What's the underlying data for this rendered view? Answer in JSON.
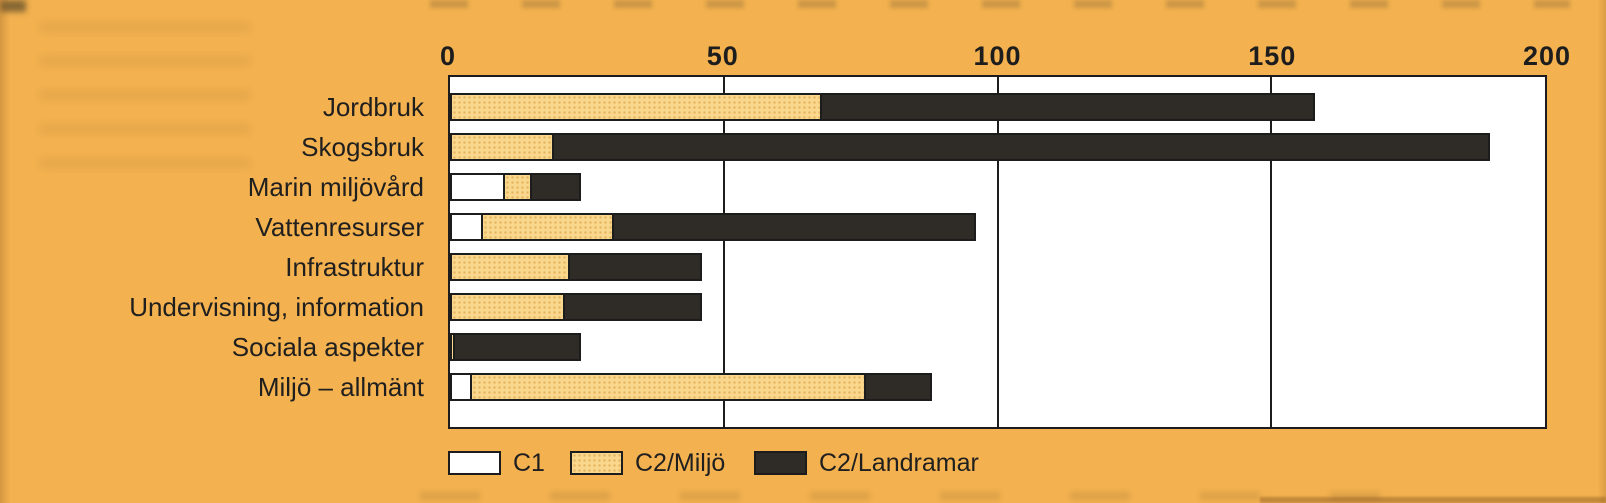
{
  "colors": {
    "page_background": "#F3B14F",
    "plot_background": "#FFFFFF",
    "axis_line": "#1C1C1C",
    "text": "#1F1F1F",
    "series_c1": "#FFFFFF",
    "series_c2_miljo": "#F9D78C",
    "series_c2_landramar": "#2F2B27"
  },
  "chart_data": {
    "type": "bar",
    "orientation": "horizontal",
    "stacked": true,
    "title": "",
    "xlabel": "",
    "ylabel": "",
    "xlim": [
      0,
      200
    ],
    "xticks": [
      "0",
      "50",
      "100",
      "150",
      "200"
    ],
    "xtick_values": [
      0,
      50,
      100,
      150,
      200
    ],
    "gridlines_at": [
      50,
      100,
      150
    ],
    "grid": true,
    "legend_position": "bottom",
    "categories": [
      "Jordbruk",
      "Skogsbruk",
      "Marin miljövård",
      "Vattenresurser",
      "Infrastruktur",
      "Undervisning, information",
      "Sociala aspekter",
      "Miljö – allmänt"
    ],
    "series": [
      {
        "name": "C1",
        "color": "#FFFFFF",
        "values": [
          0,
          0,
          10,
          6,
          0,
          0,
          0,
          4
        ]
      },
      {
        "name": "C2/Miljö",
        "color": "#F9D78C",
        "values": [
          68,
          19,
          5,
          24,
          22,
          21,
          1,
          72
        ]
      },
      {
        "name": "C2/Landramar",
        "color": "#2F2B27",
        "values": [
          90,
          171,
          9,
          66,
          24,
          25,
          23,
          12
        ]
      }
    ]
  },
  "legend": {
    "items": [
      {
        "label": "C1",
        "swatch_color": "#FFFFFF"
      },
      {
        "label": "C2/Miljö",
        "swatch_color": "#F9D78C"
      },
      {
        "label": "C2/Landramar",
        "swatch_color": "#2F2B27"
      }
    ]
  }
}
